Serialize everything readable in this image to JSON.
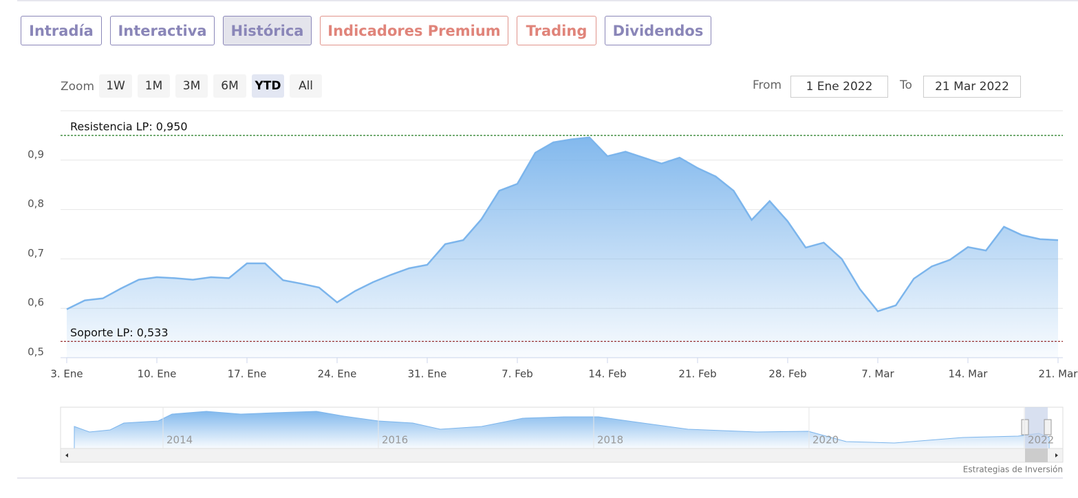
{
  "tabs": [
    "Intradía",
    "Interactiva",
    "Histórica",
    "Indicadores Premium",
    "Trading",
    "Dividendos"
  ],
  "zoom": {
    "label": "Zoom",
    "buttons": [
      "1W",
      "1M",
      "3M",
      "6M",
      "YTD",
      "All"
    ]
  },
  "range": {
    "from_label": "From",
    "from": "1 Ene 2022",
    "to_label": "To",
    "to": "21 Mar 2022"
  },
  "navigator": {
    "labels": [
      "2014",
      "2016",
      "2018",
      "2020",
      "2022"
    ]
  },
  "credit": "Estrategias de Inversión",
  "chart_data": {
    "type": "area",
    "color": "#7cb5ec",
    "categories": [
      "3. Ene",
      null,
      null,
      null,
      null,
      "10. Ene",
      null,
      null,
      null,
      null,
      "17. Ene",
      null,
      null,
      null,
      null,
      "24. Ene",
      null,
      null,
      null,
      null,
      "31. Ene",
      null,
      null,
      null,
      null,
      "7. Feb",
      null,
      null,
      null,
      null,
      "14. Feb",
      null,
      null,
      null,
      null,
      "21. Feb",
      null,
      null,
      null,
      null,
      "28. Feb",
      null,
      null,
      null,
      null,
      "7. Mar",
      null,
      null,
      null,
      null,
      "14. Mar",
      null,
      null,
      null,
      null,
      "21. Mar"
    ],
    "values": [
      0.598,
      0.616,
      0.62,
      0.64,
      0.658,
      0.663,
      0.661,
      0.658,
      0.663,
      0.661,
      0.691,
      0.691,
      0.657,
      0.65,
      0.642,
      0.612,
      0.635,
      0.653,
      0.668,
      0.681,
      0.688,
      0.73,
      0.738,
      0.78,
      0.838,
      0.852,
      0.915,
      0.936,
      0.942,
      0.946,
      0.908,
      0.917,
      0.905,
      0.893,
      0.905,
      0.884,
      0.867,
      0.838,
      0.779,
      0.817,
      0.776,
      0.723,
      0.733,
      0.7,
      0.639,
      0.594,
      0.606,
      0.66,
      0.685,
      0.698,
      0.724,
      0.717,
      0.765,
      0.748,
      0.74,
      0.738
    ],
    "ylim": [
      0.5,
      1.0
    ],
    "yticks": [
      {
        "value": 0.5,
        "label": "0,5"
      },
      {
        "value": 0.6,
        "label": "0,6"
      },
      {
        "value": 0.7,
        "label": "0,7"
      },
      {
        "value": 0.8,
        "label": "0,8"
      },
      {
        "value": 0.9,
        "label": "0,9"
      }
    ],
    "grid": true,
    "lines": [
      {
        "label": "Resistencia LP: 0,950",
        "value": 0.95,
        "color": "#1e7a1e"
      },
      {
        "label": "Soporte LP: 0,533",
        "value": 0.533,
        "color": "#8b1a1a"
      }
    ]
  }
}
